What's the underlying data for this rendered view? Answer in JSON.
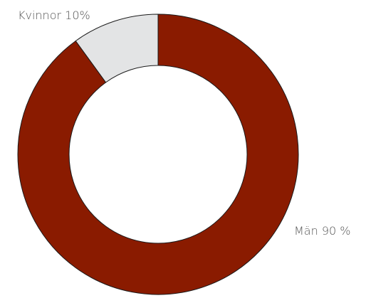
{
  "chart_data": {
    "type": "pie",
    "donut": true,
    "categories": [
      "Kvinnor",
      "Män"
    ],
    "values": [
      10,
      90
    ],
    "labels": [
      "Kvinnor 10%",
      "Män 90 %"
    ],
    "colors": [
      "#e3e4e5",
      "#8a1b00"
    ]
  }
}
